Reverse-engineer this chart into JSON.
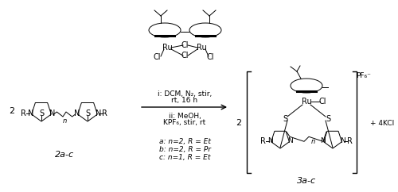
{
  "background": "#ffffff",
  "text_color": "#000000",
  "reagent_text_1": "i: DCM, N₂, stir,",
  "reagent_text_1b": "rt, 16 h",
  "reagent_text_2": "ii: MeOH,",
  "reagent_text_2b": "KPF₆, stir, rt",
  "label_left": "2a-c",
  "label_right": "3a-c",
  "plus_kcl": "+ 4KCl",
  "pf6": "PF₆⁻",
  "cond_a": "a: n=2, R = Et",
  "cond_b": "b: n=2, R = Pr",
  "cond_c": "c: n=1, R = Et",
  "font_size_main": 7,
  "font_size_label": 8,
  "font_size_cond": 6.5
}
